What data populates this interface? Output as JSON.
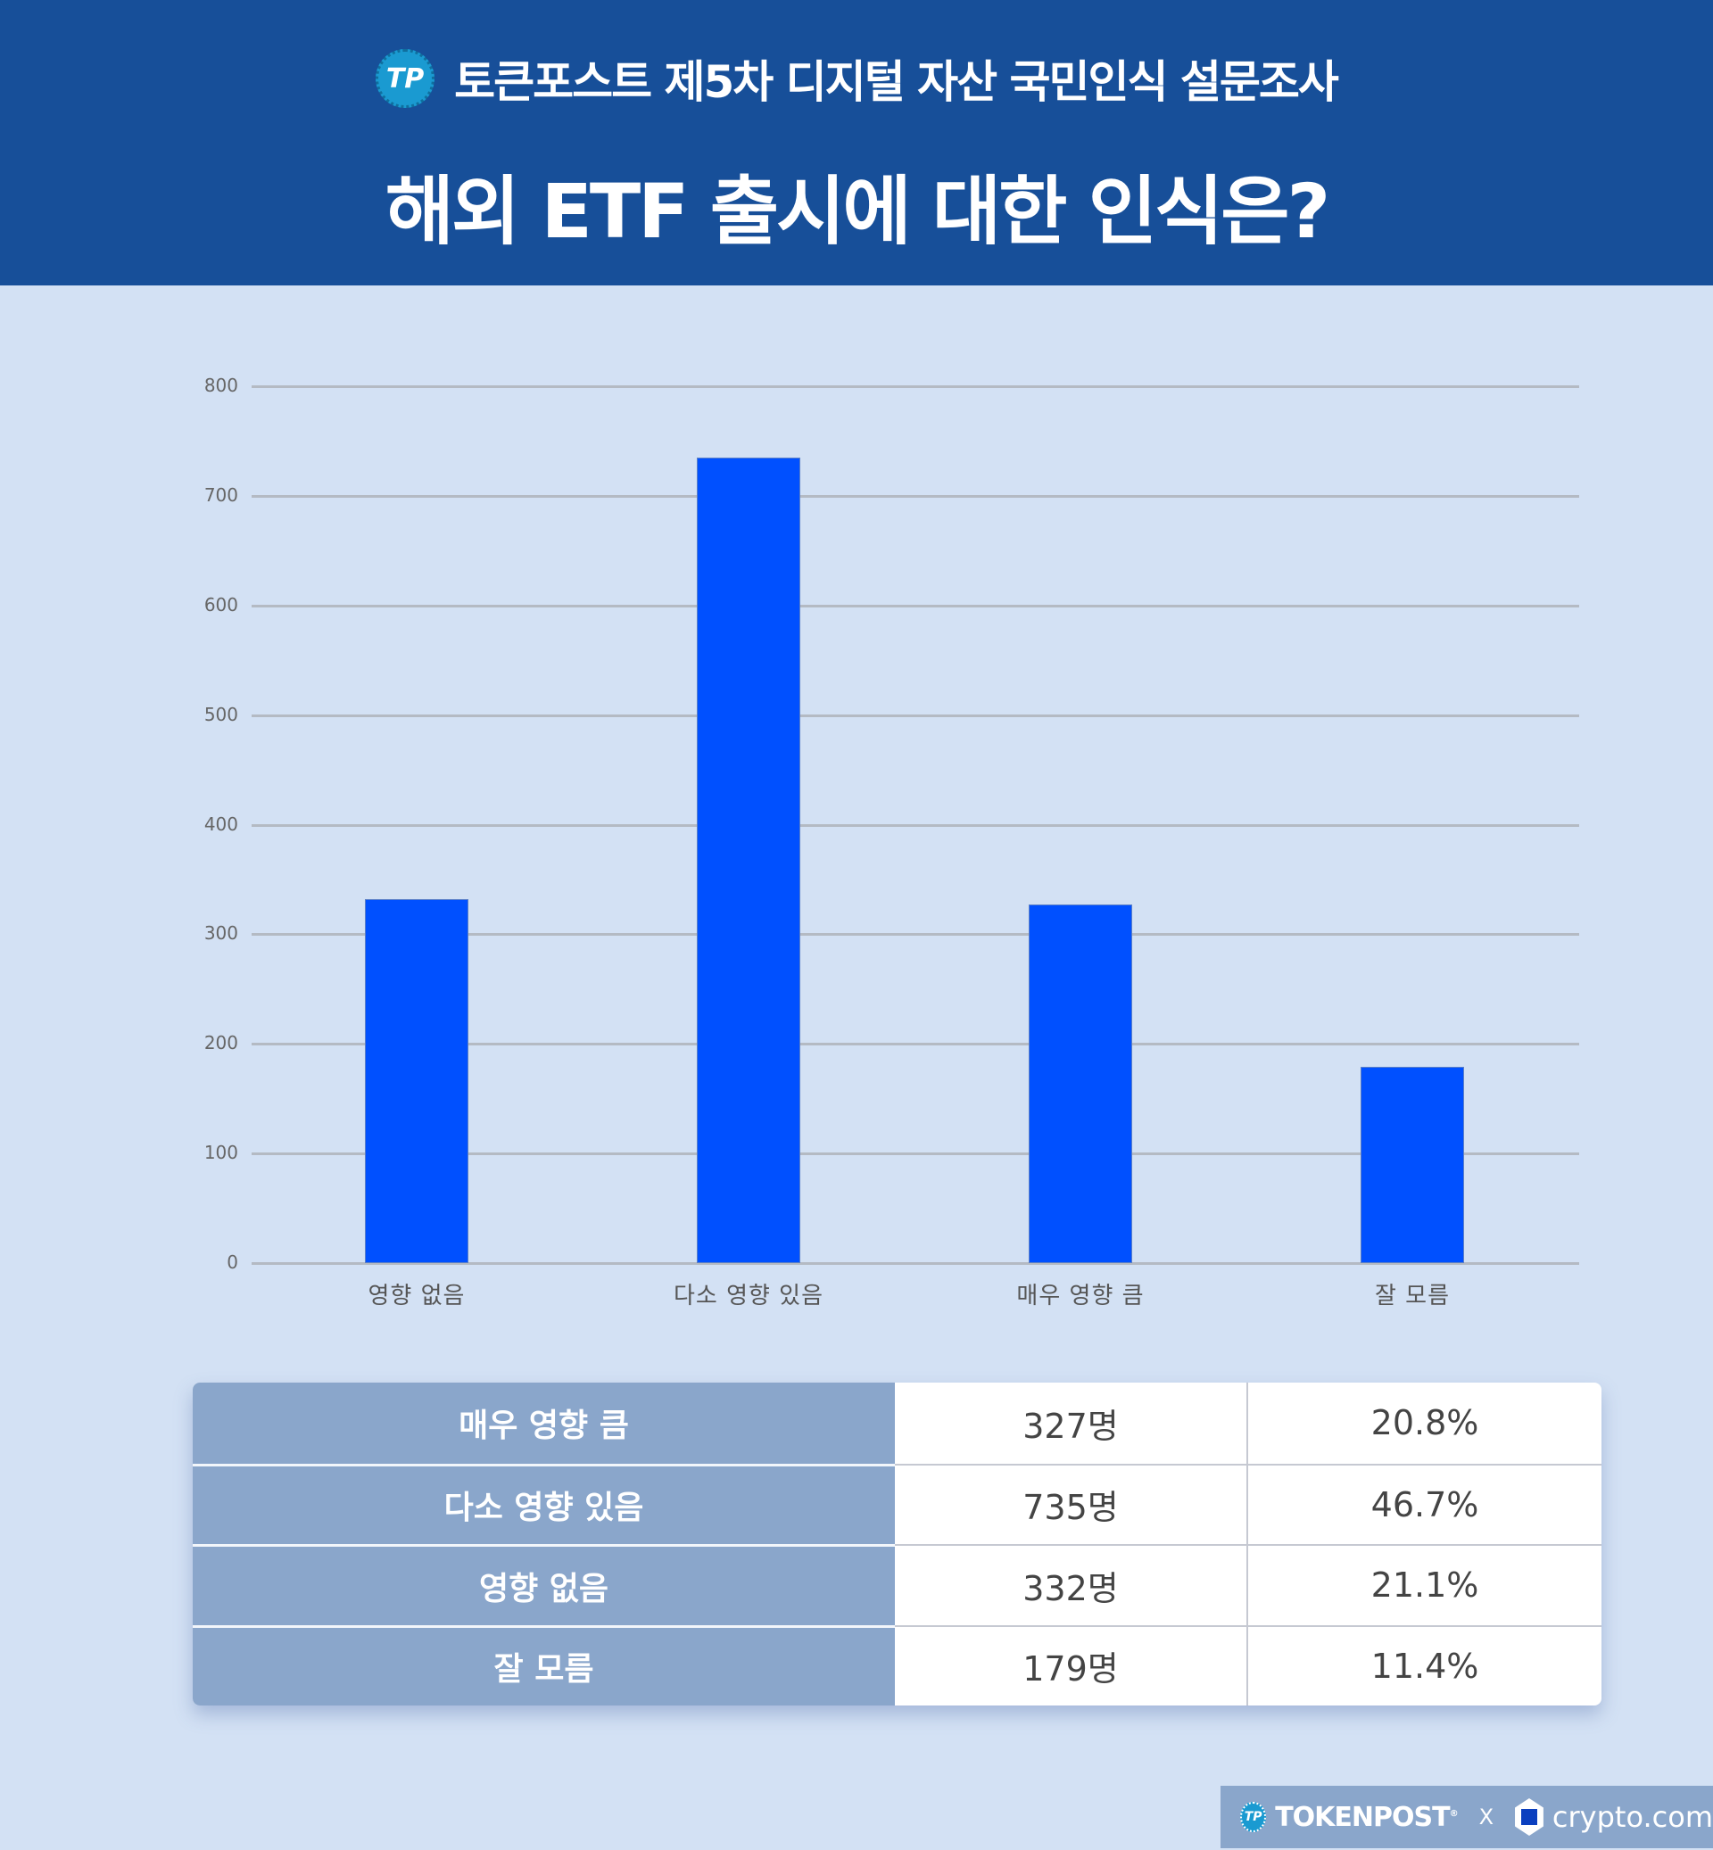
{
  "header": {
    "subtitle": "토큰포스트 제5차 디지털 자산 국민인식 설문조사",
    "logo_text": "TP",
    "title": "해외 ETF 출시에 대한 인식은?"
  },
  "colors": {
    "header_bg": "#174f99",
    "page_bg": "#d3e1f4",
    "bar": "#0050ff",
    "table_label_bg": "#8aa6cb"
  },
  "chart_data": {
    "type": "bar",
    "title": "해외 ETF 출시에 대한 인식은?",
    "categories": [
      "영향 없음",
      "다소 영향 있음",
      "매우 영향 큼",
      "잘 모름"
    ],
    "values": [
      332,
      735,
      327,
      179
    ],
    "xlabel": "",
    "ylabel": "",
    "ylim": [
      0,
      800
    ],
    "yticks": [
      "0",
      "100",
      "200",
      "300",
      "400",
      "500",
      "600",
      "700",
      "800"
    ],
    "grid": true,
    "legend": null
  },
  "table": {
    "rows": [
      {
        "label": "매우 영향 큼",
        "count": "327명",
        "percent": "20.8%"
      },
      {
        "label": "다소 영향 있음",
        "count": "735명",
        "percent": "46.7%"
      },
      {
        "label": "영향 없음",
        "count": "332명",
        "percent": "21.1%"
      },
      {
        "label": "잘 모름",
        "count": "179명",
        "percent": "11.4%"
      }
    ]
  },
  "footer": {
    "brand1": "TOKENPOST",
    "brand1_mark": "®",
    "separator": "X",
    "brand2": "crypto.com"
  }
}
